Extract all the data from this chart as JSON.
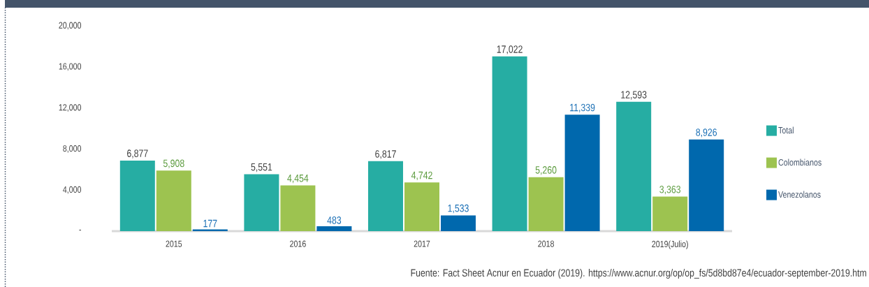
{
  "chart_data": {
    "type": "bar",
    "categories": [
      "2015",
      "2016",
      "2017",
      "2018",
      "2019(Julio)"
    ],
    "series": [
      {
        "name": "Total",
        "color": "#26ada3",
        "values": [
          6877,
          5551,
          6817,
          17022,
          12593
        ],
        "value_labels": [
          "6,877",
          "5,551",
          "6,817",
          "17,022",
          "12,593"
        ]
      },
      {
        "name": "Colombianos",
        "color": "#9dc350",
        "values": [
          5908,
          4454,
          4742,
          5260,
          3363
        ],
        "value_labels": [
          "5,908",
          "4,454",
          "4,742",
          "5,260",
          "3,363"
        ]
      },
      {
        "name": "Venezolanos",
        "color": "#0068ad",
        "values": [
          177,
          483,
          1533,
          11339,
          8926
        ],
        "value_labels": [
          "177",
          "483",
          "1,533",
          "11,339",
          "8,926"
        ]
      }
    ],
    "ylim": [
      0,
      20000
    ],
    "yticks": [
      {
        "value": 0,
        "label": "-"
      },
      {
        "value": 4000,
        "label": "4,000"
      },
      {
        "value": 8000,
        "label": "8,000"
      },
      {
        "value": 12000,
        "label": "12,000"
      },
      {
        "value": 16000,
        "label": "16,000"
      },
      {
        "value": 20000,
        "label": "20,000"
      }
    ],
    "legend": "right",
    "annotations": [
      "Fuente: Fact Sheet Acnur en Ecuador (2019). https://www.acnur.org/op/op_fs/5d8bd87e4/ecuador-september-2019.htm"
    ]
  }
}
